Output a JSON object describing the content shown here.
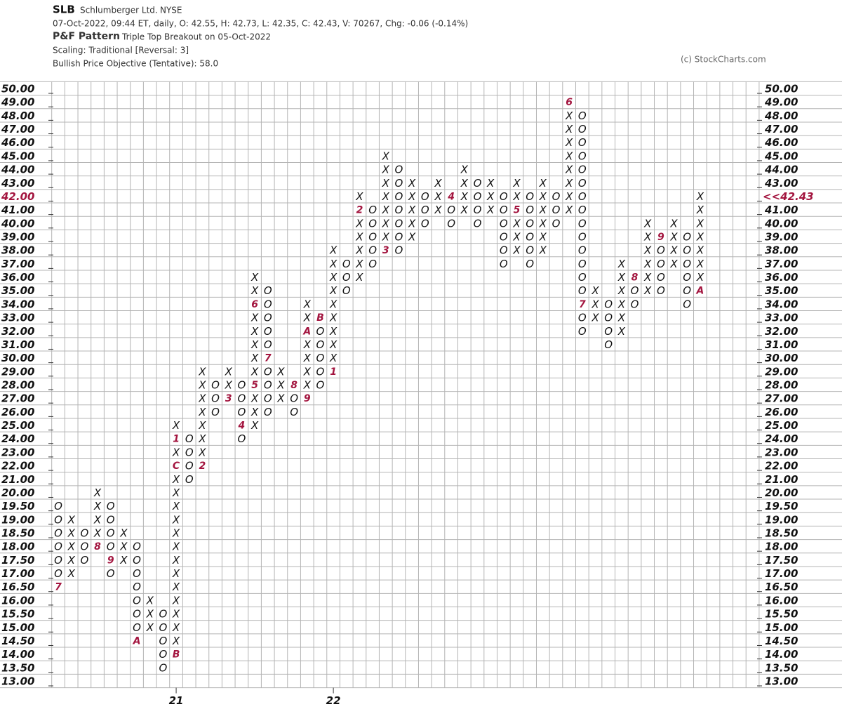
{
  "chart_data": {
    "type": "pnf",
    "symbol": "SLB",
    "name": "Schlumberger Ltd.",
    "exchange": "NYSE",
    "quote": "07-Oct-2022, 09:44 ET, daily, O: 42.55, H: 42.73, L: 42.35, C: 42.43, V: 70267, Chg: -0.06 (-0.14%)",
    "pattern_label": "P&F Pattern",
    "pattern": "Triple Top Breakout on 05-Oct-2022",
    "scaling": "Scaling: Traditional [Reversal: 3]",
    "objective": "Bullish Price Objective (Tentative): 58.0",
    "credit": "(c) StockCharts.com",
    "box_color": "#111111",
    "month_color": "#a3153f",
    "pattern_color": "#119911",
    "grid": true,
    "grid_color": "#b4b4b4",
    "ylim": [
      13,
      50
    ],
    "yticks": [
      {
        "value": 13,
        "label": "13.00"
      },
      {
        "value": 13.5,
        "label": "13.50"
      },
      {
        "value": 14,
        "label": "14.00"
      },
      {
        "value": 14.5,
        "label": "14.50"
      },
      {
        "value": 15,
        "label": "15.00"
      },
      {
        "value": 15.5,
        "label": "15.50"
      },
      {
        "value": 16,
        "label": "16.00"
      },
      {
        "value": 16.5,
        "label": "16.50"
      },
      {
        "value": 17,
        "label": "17.00"
      },
      {
        "value": 17.5,
        "label": "17.50"
      },
      {
        "value": 18,
        "label": "18.00"
      },
      {
        "value": 18.5,
        "label": "18.50"
      },
      {
        "value": 19,
        "label": "19.00"
      },
      {
        "value": 19.5,
        "label": "19.50"
      },
      {
        "value": 20,
        "label": "20.00"
      },
      {
        "value": 21,
        "label": "21.00"
      },
      {
        "value": 22,
        "label": "22.00"
      },
      {
        "value": 23,
        "label": "23.00"
      },
      {
        "value": 24,
        "label": "24.00"
      },
      {
        "value": 25,
        "label": "25.00"
      },
      {
        "value": 26,
        "label": "26.00"
      },
      {
        "value": 27,
        "label": "27.00"
      },
      {
        "value": 28,
        "label": "28.00"
      },
      {
        "value": 29,
        "label": "29.00"
      },
      {
        "value": 30,
        "label": "30.00"
      },
      {
        "value": 31,
        "label": "31.00"
      },
      {
        "value": 32,
        "label": "32.00"
      },
      {
        "value": 33,
        "label": "33.00"
      },
      {
        "value": 34,
        "label": "34.00"
      },
      {
        "value": 35,
        "label": "35.00"
      },
      {
        "value": 36,
        "label": "36.00"
      },
      {
        "value": 37,
        "label": "37.00"
      },
      {
        "value": 38,
        "label": "38.00"
      },
      {
        "value": 39,
        "label": "39.00"
      },
      {
        "value": 40,
        "label": "40.00"
      },
      {
        "value": 41,
        "label": "41.00"
      },
      {
        "value": 42,
        "label": "42.00"
      },
      {
        "value": 43,
        "label": "43.00"
      },
      {
        "value": 44,
        "label": "44.00"
      },
      {
        "value": 45,
        "label": "45.00"
      },
      {
        "value": 46,
        "label": "46.00"
      },
      {
        "value": 47,
        "label": "47.00"
      },
      {
        "value": 48,
        "label": "48.00"
      },
      {
        "value": 49,
        "label": "49.00"
      },
      {
        "value": 50,
        "label": "50.00"
      }
    ],
    "last_price": {
      "value": 42.43,
      "label": "<<42.43"
    },
    "columns": [
      {
        "box": "O",
        "top": 19.5,
        "bottom": 16.5,
        "months": [
          {
            "at": 16.5,
            "label": "7"
          }
        ]
      },
      {
        "box": "X",
        "top": 19,
        "bottom": 17,
        "months": []
      },
      {
        "box": "O",
        "top": 18.5,
        "bottom": 17.5,
        "months": []
      },
      {
        "box": "X",
        "top": 20,
        "bottom": 18,
        "months": [
          {
            "at": 18,
            "label": "8"
          }
        ]
      },
      {
        "box": "O",
        "top": 19.5,
        "bottom": 17,
        "months": [
          {
            "at": 17.5,
            "label": "9"
          }
        ]
      },
      {
        "box": "X",
        "top": 18.5,
        "bottom": 17.5,
        "months": []
      },
      {
        "box": "O",
        "top": 18,
        "bottom": 14.5,
        "months": [
          {
            "at": 14.5,
            "label": "A"
          }
        ]
      },
      {
        "box": "X",
        "top": 16,
        "bottom": 15,
        "months": []
      },
      {
        "box": "O",
        "top": 15.5,
        "bottom": 13.5,
        "months": []
      },
      {
        "box": "X",
        "top": 25,
        "bottom": 14,
        "year": "21",
        "months": [
          {
            "at": 14,
            "label": "B"
          },
          {
            "at": 22,
            "label": "C"
          },
          {
            "at": 24,
            "label": "1"
          }
        ]
      },
      {
        "box": "O",
        "top": 24,
        "bottom": 21,
        "months": []
      },
      {
        "box": "X",
        "top": 29,
        "bottom": 22,
        "months": [
          {
            "at": 22,
            "label": "2"
          }
        ]
      },
      {
        "box": "O",
        "top": 28,
        "bottom": 26,
        "months": []
      },
      {
        "box": "X",
        "top": 29,
        "bottom": 27,
        "months": [
          {
            "at": 27,
            "label": "3"
          }
        ]
      },
      {
        "box": "O",
        "top": 28,
        "bottom": 24,
        "months": [
          {
            "at": 25,
            "label": "4"
          }
        ]
      },
      {
        "box": "X",
        "top": 36,
        "bottom": 25,
        "months": [
          {
            "at": 28,
            "label": "5"
          },
          {
            "at": 34,
            "label": "6"
          }
        ]
      },
      {
        "box": "O",
        "top": 35,
        "bottom": 26,
        "months": [
          {
            "at": 30,
            "label": "7"
          }
        ]
      },
      {
        "box": "X",
        "top": 29,
        "bottom": 27,
        "months": []
      },
      {
        "box": "O",
        "top": 28,
        "bottom": 26,
        "months": [
          {
            "at": 28,
            "label": "8"
          }
        ]
      },
      {
        "box": "X",
        "top": 34,
        "bottom": 27,
        "months": [
          {
            "at": 27,
            "label": "9"
          },
          {
            "at": 32,
            "label": "A"
          }
        ]
      },
      {
        "box": "O",
        "top": 33,
        "bottom": 28,
        "months": [
          {
            "at": 33,
            "label": "B"
          }
        ]
      },
      {
        "box": "X",
        "top": 38,
        "bottom": 29,
        "year": "22",
        "months": [
          {
            "at": 29,
            "label": "1"
          }
        ]
      },
      {
        "box": "O",
        "top": 37,
        "bottom": 35,
        "months": []
      },
      {
        "box": "X",
        "top": 42,
        "bottom": 36,
        "months": [
          {
            "at": 41,
            "label": "2"
          }
        ]
      },
      {
        "box": "O",
        "top": 41,
        "bottom": 37,
        "months": []
      },
      {
        "box": "X",
        "top": 45,
        "bottom": 38,
        "months": [
          {
            "at": 38,
            "label": "3"
          }
        ]
      },
      {
        "box": "O",
        "top": 44,
        "bottom": 38,
        "months": []
      },
      {
        "box": "X",
        "top": 43,
        "bottom": 39,
        "months": []
      },
      {
        "box": "O",
        "top": 42,
        "bottom": 40,
        "months": []
      },
      {
        "box": "X",
        "top": 43,
        "bottom": 41,
        "months": []
      },
      {
        "box": "O",
        "top": 42,
        "bottom": 40,
        "months": [
          {
            "at": 42,
            "label": "4"
          }
        ]
      },
      {
        "box": "X",
        "top": 44,
        "bottom": 41,
        "months": []
      },
      {
        "box": "O",
        "top": 43,
        "bottom": 40,
        "months": []
      },
      {
        "box": "X",
        "top": 43,
        "bottom": 41,
        "months": []
      },
      {
        "box": "O",
        "top": 42,
        "bottom": 37,
        "months": []
      },
      {
        "box": "X",
        "top": 43,
        "bottom": 38,
        "months": [
          {
            "at": 41,
            "label": "5"
          }
        ]
      },
      {
        "box": "O",
        "top": 42,
        "bottom": 37,
        "months": []
      },
      {
        "box": "X",
        "top": 43,
        "bottom": 38,
        "months": []
      },
      {
        "box": "O",
        "top": 42,
        "bottom": 40,
        "months": []
      },
      {
        "box": "X",
        "top": 49,
        "bottom": 41,
        "months": [
          {
            "at": 49,
            "label": "6"
          }
        ]
      },
      {
        "box": "O",
        "top": 48,
        "bottom": 32,
        "months": [
          {
            "at": 34,
            "label": "7"
          }
        ]
      },
      {
        "box": "X",
        "top": 35,
        "bottom": 33,
        "months": []
      },
      {
        "box": "O",
        "top": 34,
        "bottom": 31,
        "months": []
      },
      {
        "box": "X",
        "top": 37,
        "bottom": 32,
        "months": []
      },
      {
        "box": "O",
        "top": 36,
        "bottom": 34,
        "months": [
          {
            "at": 36,
            "label": "8"
          }
        ]
      },
      {
        "box": "X",
        "top": 40,
        "bottom": 35,
        "months": []
      },
      {
        "box": "O",
        "top": 39,
        "bottom": 35,
        "months": [
          {
            "at": 39,
            "label": "9"
          }
        ]
      },
      {
        "box": "X",
        "top": 40,
        "bottom": 37,
        "months": []
      },
      {
        "box": "O",
        "top": 39,
        "bottom": 34,
        "months": []
      },
      {
        "box": "X",
        "top": 42,
        "bottom": 35,
        "months": [
          {
            "at": 35,
            "label": "A"
          }
        ]
      }
    ]
  }
}
